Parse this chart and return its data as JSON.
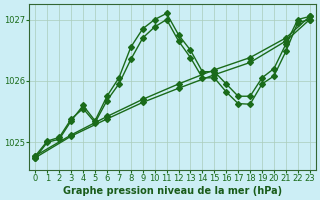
{
  "title": "Graphe pression niveau de la mer (hPa)",
  "background_color": "#cceef5",
  "grid_color": "#aaccbb",
  "line_color": "#1a6b1a",
  "xlim": [
    -0.5,
    23.5
  ],
  "ylim": [
    1024.55,
    1027.25
  ],
  "yticks": [
    1025,
    1026,
    1027
  ],
  "xticks": [
    0,
    1,
    2,
    3,
    4,
    5,
    6,
    7,
    8,
    9,
    10,
    11,
    12,
    13,
    14,
    15,
    16,
    17,
    18,
    19,
    20,
    21,
    22,
    23
  ],
  "series": [
    {
      "x": [
        0,
        1,
        2,
        3,
        4,
        5,
        6,
        7,
        8,
        9,
        10,
        11,
        12,
        13,
        14,
        15,
        16,
        17,
        18,
        19,
        20,
        21,
        22,
        23
      ],
      "y": [
        1024.75,
        1025.0,
        1025.05,
        1025.35,
        1025.6,
        1025.35,
        1025.75,
        1026.05,
        1026.55,
        1026.85,
        1027.0,
        1027.1,
        1026.75,
        1026.5,
        1026.15,
        1026.15,
        1025.95,
        1025.75,
        1025.75,
        1026.05,
        1026.2,
        1026.6,
        1027.0,
        1027.05
      ],
      "marker": "D",
      "markersize": 3,
      "linewidth": 1.0
    },
    {
      "x": [
        0,
        1,
        2,
        3,
        4,
        5,
        6,
        7,
        8,
        9,
        10,
        11,
        12,
        13,
        14,
        15,
        16,
        17,
        18,
        19,
        20,
        21,
        22,
        23
      ],
      "y": [
        1024.78,
        1025.02,
        1025.08,
        1025.38,
        1025.55,
        1025.32,
        1025.68,
        1025.95,
        1026.35,
        1026.7,
        1026.88,
        1027.0,
        1026.65,
        1026.38,
        1026.05,
        1026.05,
        1025.82,
        1025.63,
        1025.62,
        1025.95,
        1026.08,
        1026.48,
        1026.95,
        1027.0
      ],
      "marker": "D",
      "markersize": 3,
      "linewidth": 1.0
    },
    {
      "x": [
        0,
        3,
        6,
        9,
        12,
        15,
        18,
        21,
        23
      ],
      "y": [
        1024.75,
        1025.1,
        1025.38,
        1025.65,
        1025.88,
        1026.1,
        1026.3,
        1026.65,
        1027.0
      ],
      "marker": "D",
      "markersize": 3,
      "linewidth": 1.0
    },
    {
      "x": [
        0,
        3,
        6,
        9,
        12,
        15,
        18,
        21,
        23
      ],
      "y": [
        1024.78,
        1025.12,
        1025.42,
        1025.7,
        1025.95,
        1026.18,
        1026.38,
        1026.7,
        1027.05
      ],
      "marker": "D",
      "markersize": 3,
      "linewidth": 1.0
    }
  ],
  "xlabel_fontsize": 7,
  "tick_fontsize": 6,
  "xlabel_color": "#1a5c1a",
  "tick_color": "#1a6b1a",
  "spine_color": "#336633"
}
